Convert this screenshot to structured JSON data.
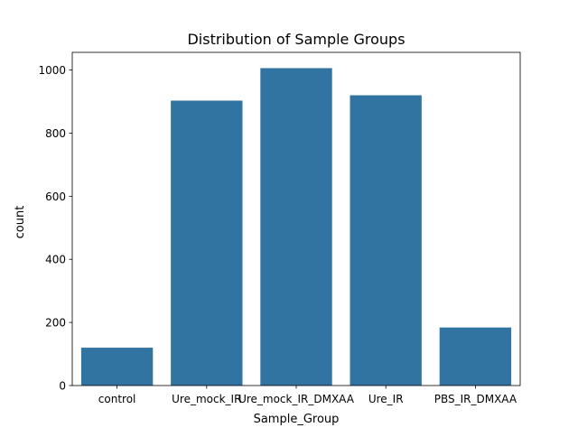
{
  "chart_data": {
    "type": "bar",
    "title": "Distribution of Sample Groups",
    "xlabel": "Sample_Group",
    "ylabel": "count",
    "categories": [
      "control",
      "Ure_mock_IR",
      "Ure_mock_IR_DMXAA",
      "Ure_IR",
      "PBS_IR_DMXAA"
    ],
    "values": [
      120,
      903,
      1006,
      920,
      184
    ],
    "ylim": [
      0,
      1056
    ],
    "yticks": [
      0,
      200,
      400,
      600,
      800,
      1000
    ],
    "grid": false,
    "legend": "none",
    "bar_color": "#3274a1"
  }
}
